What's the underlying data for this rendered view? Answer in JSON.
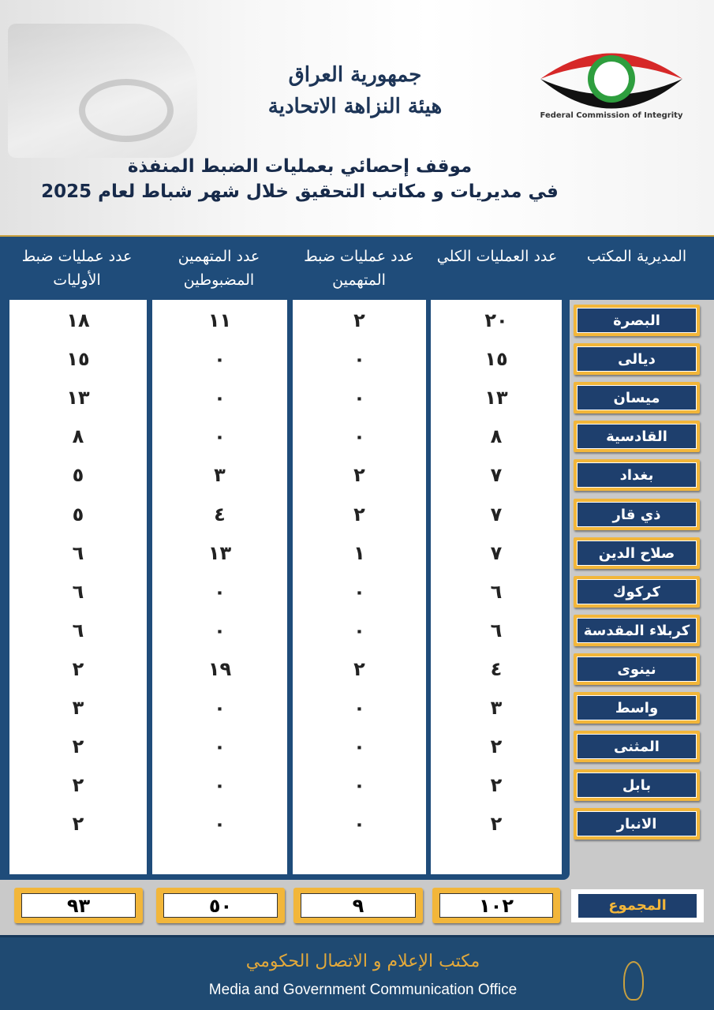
{
  "header": {
    "country": "جمهورية العراق",
    "agency": "هيئة النزاهة الاتحادية",
    "title_line1": "موقف إحصائي بعمليات الضبط المنفذة",
    "title_line2": "في مديريات و مكاتب التحقيق خلال شهر شباط لعام 2025",
    "logo_text": "Federal Commission of Integrity"
  },
  "columns": {
    "office": "المديرية المكتب",
    "total": "عدد العمليات الكلي",
    "suspect_ops": "عدد عمليات ضبط المتهمين",
    "accused": "عدد المتهمين المضبوطين",
    "flagrant": "عدد عمليات ضبط الأوليات"
  },
  "rows": [
    {
      "office": "البصرة",
      "total": "٢٠",
      "suspect_ops": "٢",
      "accused": "١١",
      "flagrant": "١٨"
    },
    {
      "office": "ديالى",
      "total": "١٥",
      "suspect_ops": "٠",
      "accused": "٠",
      "flagrant": "١٥"
    },
    {
      "office": "ميسان",
      "total": "١٣",
      "suspect_ops": "٠",
      "accused": "٠",
      "flagrant": "١٣"
    },
    {
      "office": "القادسية",
      "total": "٨",
      "suspect_ops": "٠",
      "accused": "٠",
      "flagrant": "٨"
    },
    {
      "office": "بغداد",
      "total": "٧",
      "suspect_ops": "٢",
      "accused": "٣",
      "flagrant": "٥"
    },
    {
      "office": "ذي قار",
      "total": "٧",
      "suspect_ops": "٢",
      "accused": "٤",
      "flagrant": "٥"
    },
    {
      "office": "صلاح الدين",
      "total": "٧",
      "suspect_ops": "١",
      "accused": "١٣",
      "flagrant": "٦"
    },
    {
      "office": "كركوك",
      "total": "٦",
      "suspect_ops": "٠",
      "accused": "٠",
      "flagrant": "٦"
    },
    {
      "office": "كربلاء المقدسة",
      "total": "٦",
      "suspect_ops": "٠",
      "accused": "٠",
      "flagrant": "٦"
    },
    {
      "office": "نينوى",
      "total": "٤",
      "suspect_ops": "٢",
      "accused": "١٩",
      "flagrant": "٢"
    },
    {
      "office": "واسط",
      "total": "٣",
      "suspect_ops": "٠",
      "accused": "٠",
      "flagrant": "٣"
    },
    {
      "office": "المثنى",
      "total": "٢",
      "suspect_ops": "٠",
      "accused": "٠",
      "flagrant": "٢"
    },
    {
      "office": "بابل",
      "total": "٢",
      "suspect_ops": "٠",
      "accused": "٠",
      "flagrant": "٢"
    },
    {
      "office": "الانبار",
      "total": "٢",
      "suspect_ops": "٠",
      "accused": "٠",
      "flagrant": "٢"
    }
  ],
  "totals": {
    "label": "المجموع",
    "total": "١٠٢",
    "suspect_ops": "٩",
    "accused": "٥٠",
    "flagrant": "٩٣"
  },
  "footer": {
    "arabic": "مكتب الإعلام و الاتصال الحكومي",
    "english": "Media and Government Communication Office"
  }
}
